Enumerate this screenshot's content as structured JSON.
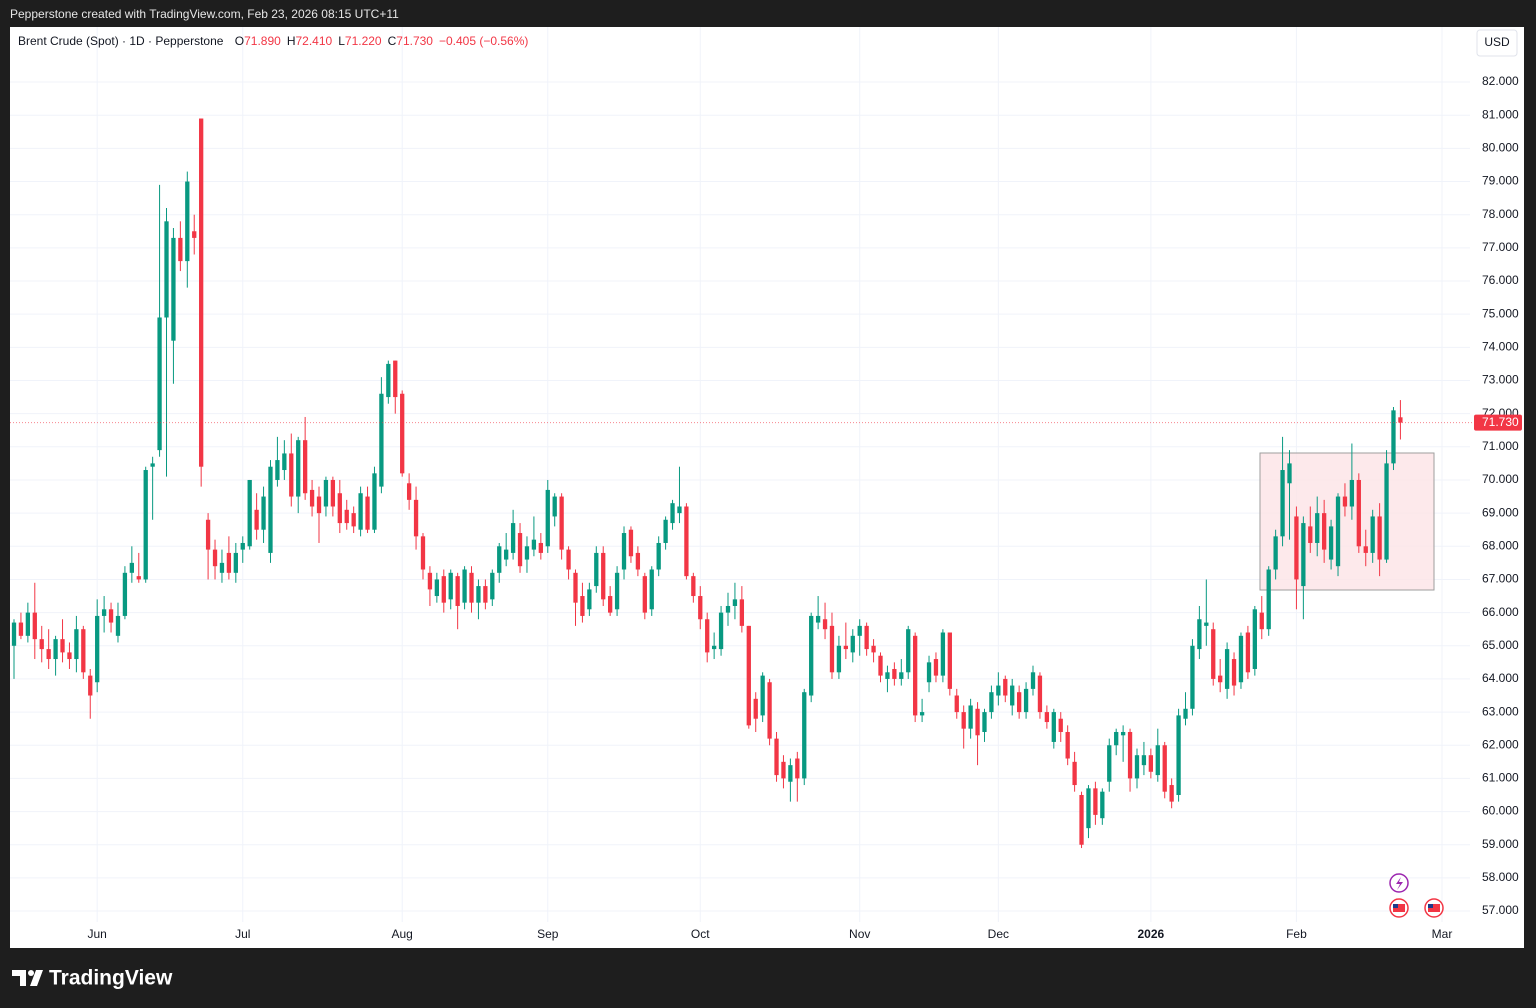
{
  "header": {
    "credit": "Pepperstone created with TradingView.com, Feb 23, 2026 08:15 UTC+11",
    "brand": "TradingView"
  },
  "chart_data": {
    "type": "candlestick",
    "title": "Brent Crude (Spot) · 1D · Pepperstone",
    "ohlc_legend": [
      {
        "key": "O",
        "value": "71.890"
      },
      {
        "key": "H",
        "value": "72.410"
      },
      {
        "key": "L",
        "value": "71.220"
      },
      {
        "key": "C",
        "value": "71.730"
      }
    ],
    "change": "−0.405 (−0.56%)",
    "currency": "USD",
    "last_price_label": "71.730",
    "up_color": "#089981",
    "down_color": "#f23645",
    "grid": true,
    "categories": [
      null,
      null,
      null,
      null,
      null,
      null,
      null,
      null,
      null,
      null,
      null,
      null,
      "Jun",
      null,
      null,
      null,
      null,
      null,
      null,
      null,
      null,
      null,
      null,
      null,
      null,
      null,
      null,
      null,
      null,
      null,
      null,
      null,
      null,
      "Jul",
      null,
      null,
      null,
      null,
      null,
      null,
      null,
      null,
      null,
      null,
      null,
      null,
      null,
      null,
      null,
      null,
      null,
      null,
      null,
      null,
      null,
      null,
      "Aug",
      null,
      null,
      null,
      null,
      null,
      null,
      null,
      null,
      null,
      null,
      null,
      null,
      null,
      null,
      null,
      null,
      null,
      null,
      null,
      null,
      "Sep",
      null,
      null,
      null,
      null,
      null,
      null,
      null,
      null,
      null,
      null,
      null,
      null,
      null,
      null,
      null,
      null,
      null,
      null,
      null,
      null,
      null,
      "Oct",
      null,
      null,
      null,
      null,
      null,
      null,
      null,
      null,
      null,
      null,
      null,
      null,
      null,
      null,
      null,
      null,
      null,
      null,
      null,
      null,
      null,
      null,
      "Nov",
      null,
      null,
      null,
      null,
      null,
      null,
      null,
      null,
      null,
      null,
      null,
      null,
      null,
      null,
      null,
      null,
      null,
      null,
      null,
      "Dec",
      null,
      null,
      null,
      null,
      null,
      null,
      null,
      null,
      null,
      null,
      null,
      null,
      null,
      null,
      null,
      null,
      null,
      null,
      null,
      null,
      null,
      "2026",
      null,
      null,
      null,
      null,
      null,
      null,
      null,
      null,
      null,
      null,
      null,
      null,
      null,
      null,
      null,
      null,
      null,
      null,
      null,
      null,
      "Feb",
      null,
      null,
      null,
      null,
      null,
      null,
      null,
      null,
      null,
      null,
      null,
      null,
      null,
      null,
      null,
      null,
      null,
      null,
      null,
      null,
      "Mar"
    ],
    "open": [
      65.0,
      65.7,
      65.3,
      66.0,
      65.2,
      64.9,
      64.6,
      65.2,
      64.8,
      64.6,
      65.5,
      64.1,
      63.9,
      65.9,
      66.1,
      65.3,
      65.9,
      67.2,
      67.1,
      67.0,
      70.4,
      70.9,
      74.9,
      74.2,
      77.3,
      76.6,
      77.5,
      80.9,
      68.8,
      67.9,
      67.2,
      67.8,
      67.2,
      67.9,
      68.0,
      69.1,
      68.5,
      67.8,
      70.0,
      70.3,
      70.8,
      69.5,
      71.2,
      69.7,
      69.5,
      69.2,
      70.0,
      69.6,
      69.1,
      69.0,
      68.5,
      69.5,
      68.5,
      69.8,
      72.5,
      73.6,
      72.6,
      69.9,
      69.4,
      68.3,
      67.2,
      66.5,
      67.1,
      66.4,
      67.1,
      66.3,
      67.2,
      66.3,
      66.8,
      66.4,
      67.2,
      67.6,
      67.8,
      68.4,
      67.6,
      67.9,
      68.1,
      68.0,
      68.9,
      69.5,
      67.9,
      67.2,
      66.5,
      66.1,
      66.8,
      67.8,
      66.5,
      66.1,
      67.3,
      68.5,
      67.8,
      67.1,
      66.1,
      67.3,
      68.1,
      68.7,
      69.0,
      69.2,
      67.1,
      66.5,
      65.8,
      64.9,
      64.9,
      66.0,
      66.2,
      66.4,
      65.6,
      63.4,
      62.9,
      63.9,
      62.2,
      61.5,
      60.9,
      61.6,
      61.0,
      63.5,
      65.7,
      65.8,
      65.6,
      64.2,
      65.0,
      64.8,
      65.3,
      65.6,
      65.0,
      64.7,
      64.0,
      64.3,
      64.0,
      64.2,
      65.3,
      62.9,
      63.9,
      64.6,
      64.1,
      65.4,
      63.5,
      63.0,
      62.5,
      63.1,
      62.4,
      63.0,
      63.5,
      64.0,
      63.2,
      63.6,
      63.0,
      63.7,
      64.1,
      63.0,
      62.1,
      62.8,
      62.4,
      61.5,
      60.5,
      59.5,
      60.7,
      59.8,
      60.9,
      62.0,
      62.3,
      62.4,
      61.0,
      61.4,
      61.7,
      61.1,
      62.0,
      60.8,
      60.5,
      62.8,
      63.1,
      64.9,
      65.6,
      65.5,
      64.1,
      63.7,
      64.6,
      63.9,
      65.4,
      64.3,
      66.0,
      65.5,
      67.3,
      68.3,
      69.9,
      68.9,
      66.8,
      68.6,
      68.1,
      69.0,
      67.6,
      67.4,
      69.5,
      69.2,
      70.0,
      68.0,
      67.8,
      68.9,
      67.6,
      70.5,
      71.89,
      null,
      null,
      null,
      null,
      null,
      null
    ],
    "high": [
      65.8,
      66.0,
      66.3,
      66.9,
      65.6,
      65.5,
      65.3,
      65.8,
      65.1,
      65.9,
      65.6,
      64.3,
      66.4,
      66.5,
      66.3,
      66.3,
      67.4,
      68.0,
      67.8,
      70.4,
      70.7,
      78.9,
      78.2,
      77.6,
      77.8,
      79.3,
      78.0,
      80.9,
      69.0,
      68.2,
      67.9,
      68.3,
      68.1,
      68.3,
      70.0,
      69.6,
      69.8,
      70.6,
      71.3,
      71.2,
      71.4,
      71.3,
      71.9,
      70.0,
      69.8,
      70.1,
      70.1,
      70.0,
      69.4,
      69.2,
      69.8,
      69.8,
      70.4,
      73.1,
      73.6,
      73.6,
      72.7,
      70.2,
      69.8,
      68.4,
      67.4,
      67.2,
      67.3,
      67.3,
      67.2,
      67.4,
      67.4,
      67.0,
      67.0,
      67.3,
      68.1,
      68.4,
      69.1,
      68.7,
      68.3,
      68.9,
      68.4,
      70.0,
      69.6,
      69.6,
      68.0,
      67.3,
      66.9,
      66.9,
      68.0,
      68.0,
      66.8,
      67.4,
      68.6,
      68.6,
      68.0,
      67.2,
      67.4,
      68.3,
      68.9,
      69.4,
      70.4,
      69.3,
      67.2,
      66.8,
      66.0,
      65.4,
      66.2,
      66.6,
      66.9,
      66.8,
      65.6,
      63.6,
      64.2,
      64.0,
      62.4,
      61.7,
      61.6,
      61.8,
      63.7,
      66.0,
      66.5,
      66.3,
      66.0,
      65.3,
      65.7,
      65.5,
      65.8,
      65.7,
      65.2,
      64.8,
      64.4,
      64.5,
      64.6,
      65.6,
      65.4,
      63.4,
      64.7,
      64.8,
      65.5,
      65.4,
      63.7,
      63.2,
      63.4,
      63.3,
      63.1,
      63.8,
      64.2,
      64.1,
      64.0,
      63.8,
      63.9,
      64.4,
      64.2,
      63.2,
      63.1,
      63.0,
      62.6,
      61.8,
      60.6,
      60.8,
      60.9,
      60.7,
      62.2,
      62.5,
      62.6,
      62.5,
      61.9,
      62.1,
      61.9,
      62.5,
      62.1,
      61.0,
      63.1,
      63.6,
      65.2,
      66.2,
      67.0,
      65.7,
      64.6,
      65.1,
      64.8,
      65.4,
      65.6,
      66.2,
      66.5,
      67.4,
      68.5,
      71.3,
      70.9,
      69.2,
      68.9,
      69.2,
      69.5,
      69.4,
      68.8,
      69.6,
      69.9,
      71.1,
      70.2,
      68.5,
      69.1,
      69.3,
      70.9,
      72.2,
      72.41,
      null,
      null,
      null,
      null,
      null,
      null
    ],
    "low": [
      64.0,
      65.2,
      65.1,
      64.6,
      64.5,
      64.3,
      64.1,
      64.5,
      64.3,
      64.2,
      64.0,
      62.8,
      63.6,
      65.4,
      65.4,
      65.1,
      65.8,
      66.9,
      66.9,
      66.9,
      68.8,
      70.7,
      70.1,
      72.9,
      76.3,
      75.8,
      76.8,
      69.8,
      67.0,
      67.0,
      66.9,
      67.0,
      66.9,
      67.5,
      67.9,
      68.2,
      68.1,
      67.5,
      69.8,
      70.0,
      69.2,
      69.0,
      69.4,
      68.9,
      68.1,
      68.9,
      68.9,
      68.4,
      68.5,
      68.4,
      68.3,
      68.4,
      68.4,
      69.6,
      72.3,
      72.0,
      70.1,
      69.1,
      67.9,
      67.0,
      66.2,
      66.3,
      66.0,
      66.1,
      65.5,
      66.1,
      66.0,
      65.8,
      66.1,
      66.2,
      66.9,
      67.4,
      67.6,
      67.2,
      67.2,
      67.7,
      67.6,
      67.8,
      68.6,
      67.6,
      67.0,
      65.6,
      65.7,
      65.9,
      66.6,
      66.2,
      65.9,
      65.9,
      67.0,
      67.5,
      67.1,
      65.8,
      65.9,
      67.1,
      67.9,
      68.5,
      68.7,
      67.0,
      66.3,
      65.5,
      64.5,
      64.6,
      64.7,
      65.6,
      65.8,
      65.4,
      62.5,
      62.4,
      62.7,
      62.0,
      60.9,
      60.7,
      60.3,
      60.3,
      60.8,
      63.3,
      65.5,
      65.2,
      64.0,
      64.0,
      64.6,
      64.5,
      64.7,
      64.7,
      64.5,
      63.9,
      63.6,
      63.8,
      63.8,
      64.0,
      62.7,
      62.7,
      63.6,
      63.9,
      63.9,
      63.5,
      62.8,
      61.9,
      62.2,
      61.4,
      62.1,
      62.8,
      63.2,
      63.3,
      62.9,
      62.8,
      62.8,
      63.5,
      62.8,
      62.5,
      61.9,
      62.1,
      61.4,
      60.6,
      58.9,
      59.2,
      59.6,
      59.6,
      60.6,
      61.7,
      61.5,
      60.6,
      60.7,
      61.1,
      61.0,
      60.9,
      60.4,
      60.1,
      60.3,
      62.6,
      62.9,
      64.6,
      65.0,
      63.8,
      63.6,
      63.4,
      63.5,
      63.7,
      64.0,
      64.1,
      65.2,
      65.3,
      67.0,
      68.0,
      68.2,
      66.1,
      65.8,
      67.8,
      67.7,
      67.5,
      67.3,
      67.1,
      68.9,
      68.8,
      67.8,
      67.4,
      67.5,
      67.1,
      67.5,
      70.3,
      71.22,
      null,
      null,
      null,
      null,
      null,
      null
    ],
    "close": [
      65.7,
      65.3,
      66.0,
      65.2,
      64.9,
      64.6,
      65.2,
      64.8,
      64.6,
      65.5,
      64.2,
      63.5,
      65.9,
      66.1,
      65.7,
      65.9,
      67.2,
      67.5,
      67.0,
      70.3,
      70.5,
      74.9,
      77.8,
      77.3,
      76.6,
      79.0,
      77.3,
      70.4,
      67.9,
      67.4,
      67.5,
      67.2,
      67.8,
      68.1,
      70.0,
      68.5,
      69.5,
      70.4,
      70.6,
      70.8,
      69.5,
      71.2,
      69.6,
      69.2,
      69.0,
      70.0,
      69.2,
      68.7,
      68.7,
      68.6,
      69.6,
      68.5,
      70.2,
      72.6,
      73.5,
      72.5,
      70.2,
      69.4,
      68.3,
      67.3,
      66.7,
      67.0,
      66.3,
      67.2,
      66.2,
      67.3,
      66.3,
      66.8,
      66.3,
      67.2,
      68.0,
      67.9,
      68.7,
      67.4,
      68.0,
      68.2,
      67.8,
      69.7,
      69.5,
      67.9,
      67.3,
      66.3,
      65.9,
      66.7,
      67.8,
      66.4,
      66.0,
      67.2,
      68.4,
      67.7,
      67.3,
      66.0,
      67.3,
      68.1,
      68.8,
      69.3,
      69.2,
      67.1,
      66.5,
      65.8,
      64.8,
      65.0,
      66.0,
      66.2,
      66.4,
      65.6,
      62.6,
      62.8,
      64.1,
      62.2,
      61.1,
      61.0,
      61.4,
      61.0,
      63.6,
      65.9,
      65.9,
      65.5,
      64.2,
      65.0,
      64.9,
      65.3,
      65.6,
      64.9,
      64.8,
      64.1,
      64.2,
      64.0,
      64.2,
      65.5,
      62.9,
      63.0,
      64.5,
      64.1,
      65.4,
      63.7,
      63.0,
      62.5,
      63.2,
      62.3,
      63.0,
      63.6,
      63.8,
      63.5,
      63.8,
      63.0,
      63.7,
      64.2,
      63.0,
      62.7,
      63.0,
      62.4,
      61.6,
      60.8,
      59.0,
      60.7,
      59.9,
      60.6,
      62.0,
      62.4,
      62.4,
      61.0,
      61.7,
      61.7,
      61.2,
      62.0,
      60.6,
      60.3,
      62.9,
      63.1,
      65.0,
      65.8,
      65.7,
      64.0,
      63.9,
      64.9,
      63.8,
      65.3,
      64.2,
      66.1,
      65.5,
      67.3,
      68.3,
      70.3,
      70.5,
      67.0,
      68.7,
      68.1,
      69.0,
      67.9,
      68.6,
      69.5,
      69.2,
      70.0,
      68.0,
      67.8,
      68.9,
      67.6,
      70.5,
      72.1,
      71.73,
      null,
      null,
      null,
      null,
      null,
      null
    ],
    "ylim": [
      56.67,
      83.66
    ],
    "yticks": [
      {
        "value": 57,
        "label": "57.000"
      },
      {
        "value": 58,
        "label": "58.000"
      },
      {
        "value": 59,
        "label": "59.000"
      },
      {
        "value": 60,
        "label": "60.000"
      },
      {
        "value": 61,
        "label": "61.000"
      },
      {
        "value": 62,
        "label": "62.000"
      },
      {
        "value": 63,
        "label": "63.000"
      },
      {
        "value": 64,
        "label": "64.000"
      },
      {
        "value": 65,
        "label": "65.000"
      },
      {
        "value": 66,
        "label": "66.000"
      },
      {
        "value": 67,
        "label": "67.000"
      },
      {
        "value": 68,
        "label": "68.000"
      },
      {
        "value": 69,
        "label": "69.000"
      },
      {
        "value": 70,
        "label": "70.000"
      },
      {
        "value": 71,
        "label": "71.000"
      },
      {
        "value": 72,
        "label": "72.000"
      },
      {
        "value": 73,
        "label": "73.000"
      },
      {
        "value": 74,
        "label": "74.000"
      },
      {
        "value": 75,
        "label": "75.000"
      },
      {
        "value": 76,
        "label": "76.000"
      },
      {
        "value": 77,
        "label": "77.000"
      },
      {
        "value": 78,
        "label": "78.000"
      },
      {
        "value": 79,
        "label": "79.000"
      },
      {
        "value": 80,
        "label": "80.000"
      },
      {
        "value": 81,
        "label": "81.000"
      },
      {
        "value": 82,
        "label": "82.000"
      }
    ]
  }
}
